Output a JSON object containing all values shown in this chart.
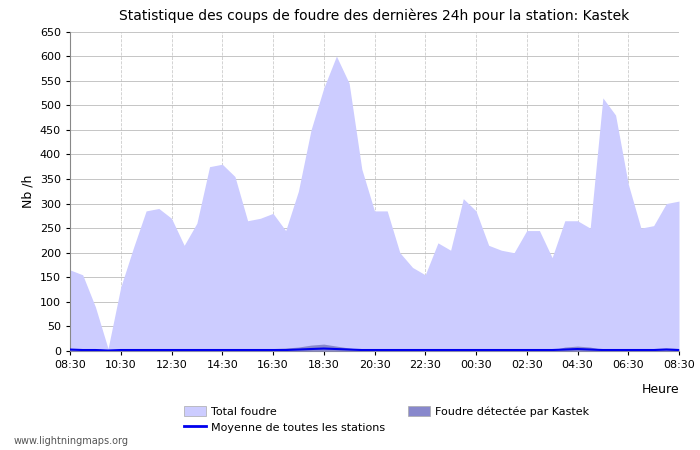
{
  "title": "Statistique des coups de foudre des dernières 24h pour la station: Kastek",
  "xlabel": "Heure",
  "ylabel": "Nb /h",
  "ylim": [
    0,
    650
  ],
  "yticks": [
    0,
    50,
    100,
    150,
    200,
    250,
    300,
    350,
    400,
    450,
    500,
    550,
    600,
    650
  ],
  "x_labels": [
    "08:30",
    "10:30",
    "12:30",
    "14:30",
    "16:30",
    "18:30",
    "20:30",
    "22:30",
    "00:30",
    "02:30",
    "04:30",
    "06:30",
    "08:30"
  ],
  "total_foudre_color": "#ccccff",
  "kastek_color": "#8888cc",
  "moyenne_color": "#0000ee",
  "background_color": "#ffffff",
  "grid_color_h": "#bbbbbb",
  "grid_color_v": "#cccccc",
  "watermark": "www.lightningmaps.org",
  "total_foudre": [
    165,
    155,
    90,
    5,
    130,
    210,
    285,
    290,
    270,
    215,
    260,
    375,
    380,
    355,
    265,
    270,
    280,
    245,
    325,
    450,
    535,
    600,
    545,
    370,
    285,
    285,
    200,
    170,
    155,
    220,
    205,
    310,
    285,
    215,
    205,
    200,
    245,
    245,
    190,
    265,
    265,
    250,
    515,
    480,
    340,
    250,
    255,
    300,
    305
  ],
  "kastek_foudre": [
    5,
    5,
    5,
    2,
    3,
    3,
    4,
    5,
    4,
    3,
    3,
    5,
    5,
    4,
    3,
    4,
    5,
    6,
    8,
    12,
    14,
    10,
    6,
    3,
    2,
    2,
    2,
    2,
    2,
    2,
    2,
    3,
    3,
    2,
    2,
    2,
    2,
    2,
    2,
    8,
    10,
    8,
    3,
    3,
    3,
    4,
    5,
    6,
    5
  ],
  "moyenne": [
    3,
    2,
    2,
    1,
    2,
    2,
    2,
    2,
    2,
    2,
    2,
    2,
    2,
    2,
    2,
    2,
    2,
    2,
    3,
    4,
    5,
    4,
    3,
    2,
    2,
    2,
    2,
    2,
    2,
    2,
    2,
    2,
    2,
    2,
    2,
    2,
    2,
    2,
    2,
    3,
    4,
    3,
    2,
    2,
    2,
    2,
    2,
    3,
    2
  ]
}
